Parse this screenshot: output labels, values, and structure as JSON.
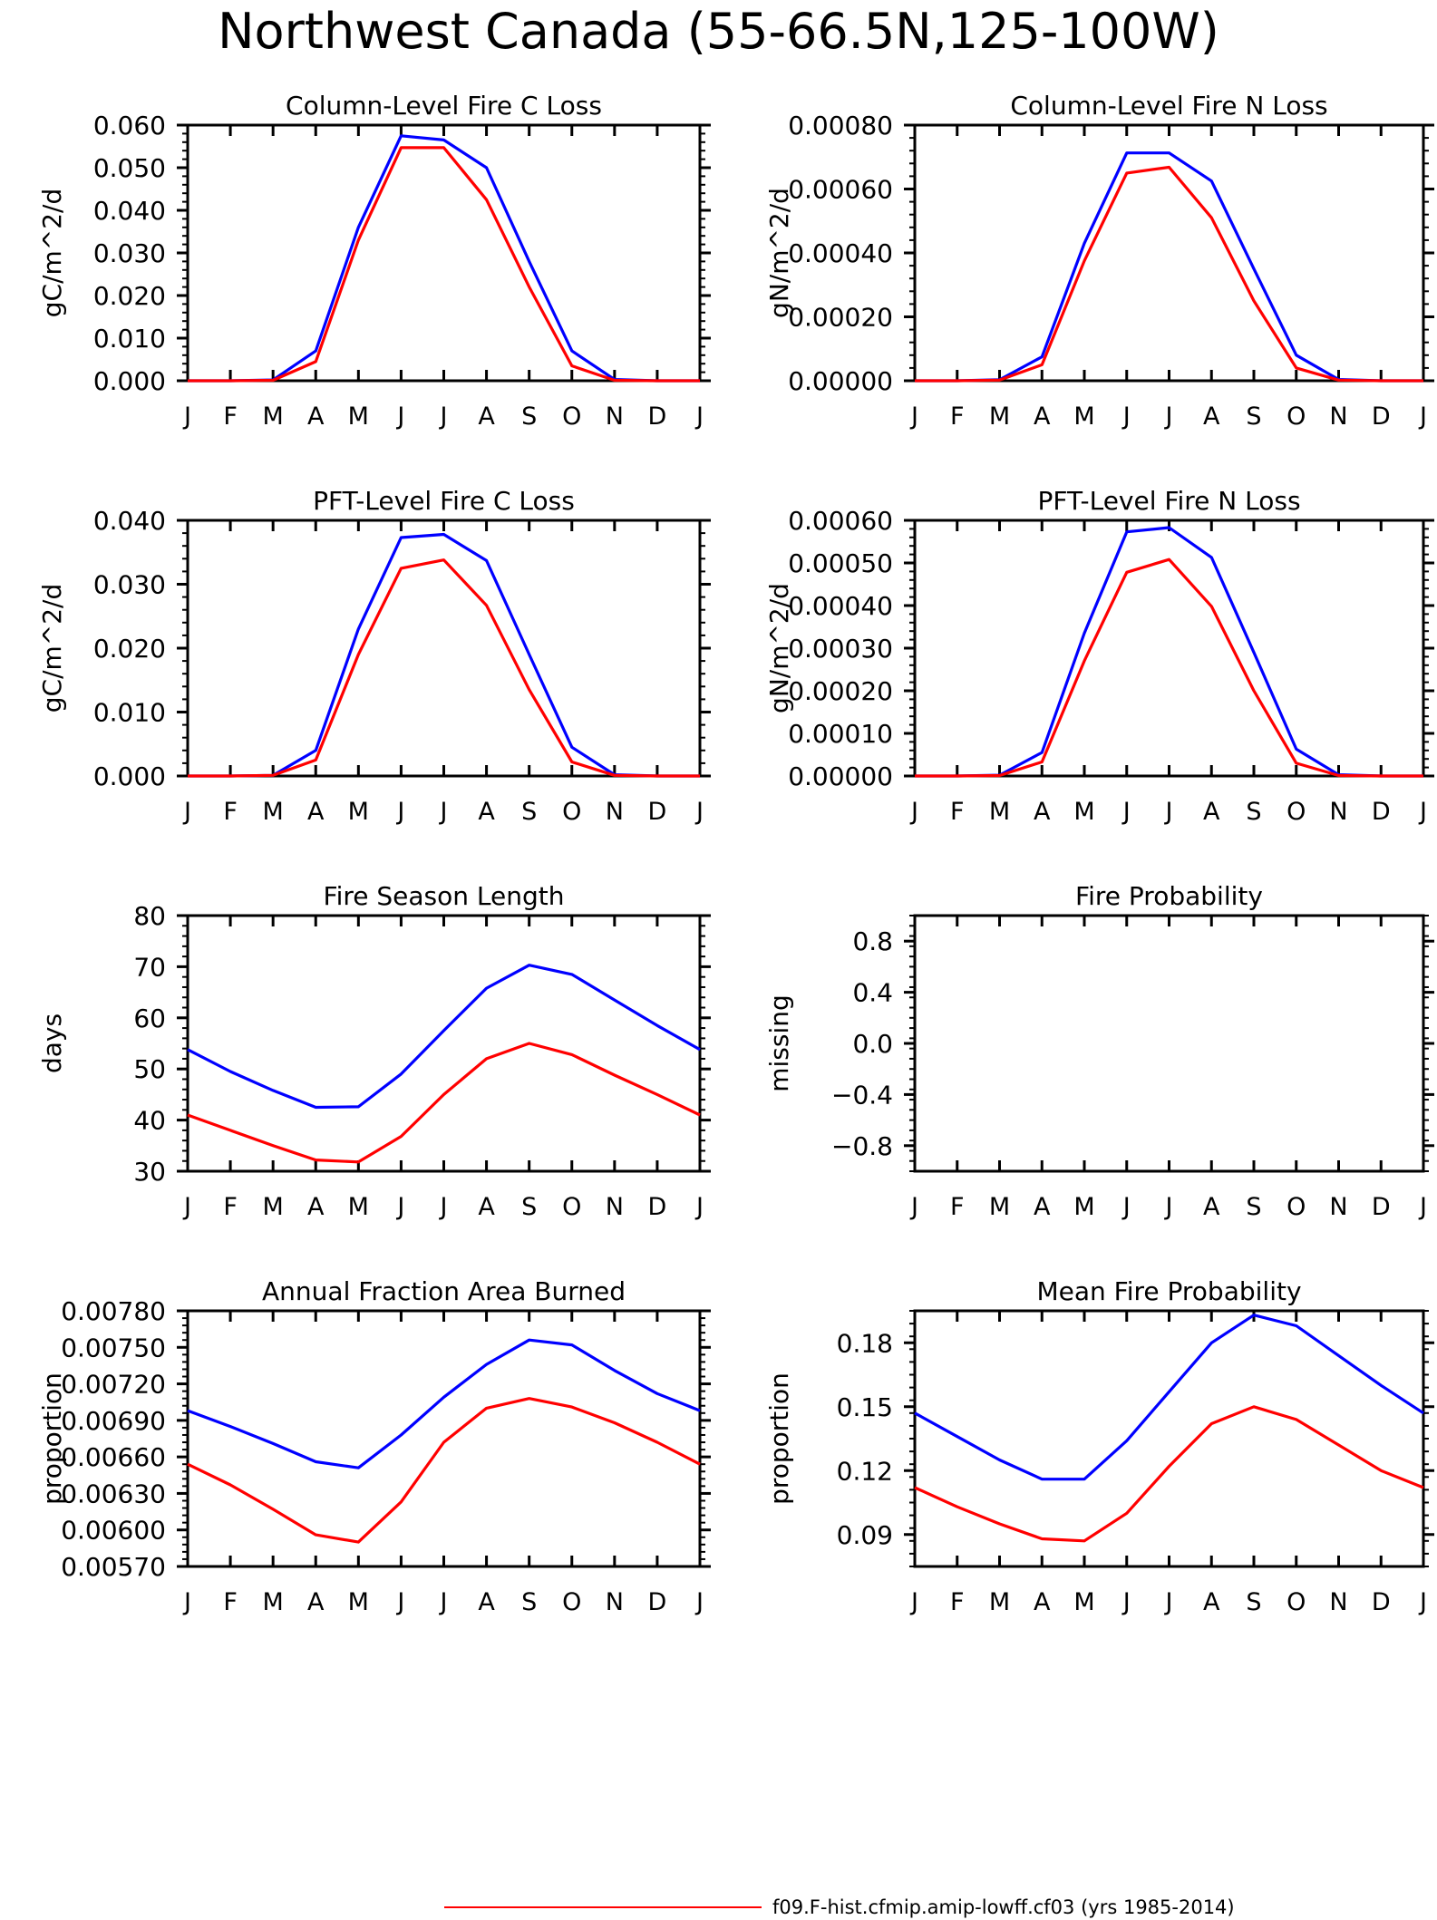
{
  "title": "Northwest Canada (55-66.5N,125-100W)",
  "colors": {
    "series_1": "#0000ff",
    "series_2": "#ff0000",
    "axis": "#000000"
  },
  "legend": {
    "label": "f09.F-hist.cfmip.amip-lowff.cf03 (yrs 1985-2014)",
    "color": "#ff0000"
  },
  "chart_data": [
    {
      "type": "line",
      "title": "Column-Level Fire C Loss",
      "ylabel": "gC/m^2/d",
      "categories": [
        "J",
        "F",
        "M",
        "A",
        "M",
        "J",
        "J",
        "A",
        "S",
        "O",
        "N",
        "D",
        "J"
      ],
      "ylim": [
        0,
        0.06
      ],
      "yticks": [
        "0.000",
        "0.010",
        "0.020",
        "0.030",
        "0.040",
        "0.050",
        "0.060"
      ],
      "series": [
        {
          "color": "#0000ff",
          "values": [
            0,
            0,
            0.0002,
            0.007,
            0.036,
            0.0575,
            0.0565,
            0.05,
            0.028,
            0.007,
            0.0003,
            0,
            0
          ]
        },
        {
          "color": "#ff0000",
          "values": [
            0,
            0,
            0.0001,
            0.0045,
            0.033,
            0.0547,
            0.0547,
            0.0425,
            0.022,
            0.0035,
            0.0001,
            0,
            0
          ]
        }
      ]
    },
    {
      "type": "line",
      "title": "Column-Level Fire N Loss",
      "ylabel": "gN/m^2/d",
      "categories": [
        "J",
        "F",
        "M",
        "A",
        "M",
        "J",
        "J",
        "A",
        "S",
        "O",
        "N",
        "D",
        "J"
      ],
      "ylim": [
        0,
        0.0008
      ],
      "yticks": [
        "0.00000",
        "0.00020",
        "0.00040",
        "0.00060",
        "0.00080"
      ],
      "series": [
        {
          "color": "#0000ff",
          "values": [
            0,
            0,
            3e-06,
            7.5e-05,
            0.00043,
            0.000713,
            0.000713,
            0.000625,
            0.00035,
            8e-05,
            4e-06,
            0,
            0
          ]
        },
        {
          "color": "#ff0000",
          "values": [
            0,
            0,
            2e-06,
            5e-05,
            0.000375,
            0.00065,
            0.000668,
            0.00051,
            0.00025,
            4e-05,
            2e-06,
            0,
            0
          ]
        }
      ]
    },
    {
      "type": "line",
      "title": "PFT-Level Fire C Loss",
      "ylabel": "gC/m^2/d",
      "categories": [
        "J",
        "F",
        "M",
        "A",
        "M",
        "J",
        "J",
        "A",
        "S",
        "O",
        "N",
        "D",
        "J"
      ],
      "ylim": [
        0,
        0.04
      ],
      "yticks": [
        "0.000",
        "0.010",
        "0.020",
        "0.030",
        "0.040"
      ],
      "series": [
        {
          "color": "#0000ff",
          "values": [
            0,
            0,
            0.0001,
            0.004,
            0.023,
            0.0373,
            0.0378,
            0.0337,
            0.019,
            0.0045,
            0.0002,
            0,
            0
          ]
        },
        {
          "color": "#ff0000",
          "values": [
            0,
            0,
            0.0001,
            0.0025,
            0.019,
            0.0325,
            0.0338,
            0.0267,
            0.0135,
            0.0022,
            0.0001,
            0,
            0
          ]
        }
      ]
    },
    {
      "type": "line",
      "title": "PFT-Level Fire N Loss",
      "ylabel": "gN/m^2/d",
      "categories": [
        "J",
        "F",
        "M",
        "A",
        "M",
        "J",
        "J",
        "A",
        "S",
        "O",
        "N",
        "D",
        "J"
      ],
      "ylim": [
        0,
        0.0006
      ],
      "yticks": [
        "0.00000",
        "0.00010",
        "0.00020",
        "0.00030",
        "0.00040",
        "0.00050",
        "0.00060"
      ],
      "series": [
        {
          "color": "#0000ff",
          "values": [
            0,
            0,
            2e-06,
            5.5e-05,
            0.000335,
            0.000573,
            0.000583,
            0.000513,
            0.00029,
            6.3e-05,
            3e-06,
            0,
            0
          ]
        },
        {
          "color": "#ff0000",
          "values": [
            0,
            0,
            1e-06,
            3.3e-05,
            0.00027,
            0.000478,
            0.000508,
            0.000398,
            0.0002,
            3e-05,
            1e-06,
            0,
            0
          ]
        }
      ]
    },
    {
      "type": "line",
      "title": "Fire Season Length",
      "ylabel": "days",
      "categories": [
        "J",
        "F",
        "M",
        "A",
        "M",
        "J",
        "J",
        "A",
        "S",
        "O",
        "N",
        "D",
        "J"
      ],
      "ylim": [
        30,
        80
      ],
      "yticks": [
        "30",
        "40",
        "50",
        "60",
        "70",
        "80"
      ],
      "series": [
        {
          "color": "#0000ff",
          "values": [
            53.8,
            49.5,
            45.8,
            42.5,
            42.6,
            49,
            57.5,
            65.8,
            70.3,
            68.5,
            63.5,
            58.5,
            53.8
          ]
        },
        {
          "color": "#ff0000",
          "values": [
            41,
            38,
            35,
            32.2,
            31.8,
            36.8,
            45,
            52,
            55,
            52.8,
            48.8,
            45,
            41
          ]
        }
      ]
    },
    {
      "type": "line",
      "title": "Fire Probability",
      "ylabel": "missing",
      "categories": [
        "J",
        "F",
        "M",
        "A",
        "M",
        "J",
        "J",
        "A",
        "S",
        "O",
        "N",
        "D",
        "J"
      ],
      "ylim": [
        -1,
        1
      ],
      "yticks": [
        "-0.8",
        "-0.4",
        "0.0",
        "0.4",
        "0.8"
      ],
      "series": []
    },
    {
      "type": "line",
      "title": "Annual Fraction Area Burned",
      "ylabel": "proportion",
      "categories": [
        "J",
        "F",
        "M",
        "A",
        "M",
        "J",
        "J",
        "A",
        "S",
        "O",
        "N",
        "D",
        "J"
      ],
      "ylim": [
        0.0057,
        0.0078
      ],
      "yticks": [
        "0.00570",
        "0.00600",
        "0.00630",
        "0.00660",
        "0.00690",
        "0.00720",
        "0.00750",
        "0.00780"
      ],
      "series": [
        {
          "color": "#0000ff",
          "values": [
            0.00698,
            0.00685,
            0.00671,
            0.00656,
            0.00651,
            0.00678,
            0.00709,
            0.00736,
            0.00756,
            0.00752,
            0.00731,
            0.00712,
            0.00698
          ]
        },
        {
          "color": "#ff0000",
          "values": [
            0.00654,
            0.00637,
            0.00617,
            0.00596,
            0.0059,
            0.00623,
            0.00672,
            0.007,
            0.00708,
            0.00701,
            0.00688,
            0.00672,
            0.00654
          ]
        }
      ]
    },
    {
      "type": "line",
      "title": "Mean Fire Probability",
      "ylabel": "proportion",
      "categories": [
        "J",
        "F",
        "M",
        "A",
        "M",
        "J",
        "J",
        "A",
        "S",
        "O",
        "N",
        "D",
        "J"
      ],
      "ylim": [
        0.075,
        0.195
      ],
      "yticks": [
        "0.09",
        "0.12",
        "0.15",
        "0.18"
      ],
      "series": [
        {
          "color": "#0000ff",
          "values": [
            0.147,
            0.136,
            0.125,
            0.116,
            0.116,
            0.134,
            0.157,
            0.18,
            0.193,
            0.188,
            0.174,
            0.16,
            0.147
          ]
        },
        {
          "color": "#ff0000",
          "values": [
            0.112,
            0.103,
            0.095,
            0.088,
            0.087,
            0.1,
            0.122,
            0.142,
            0.15,
            0.144,
            0.132,
            0.12,
            0.112
          ]
        }
      ]
    }
  ]
}
